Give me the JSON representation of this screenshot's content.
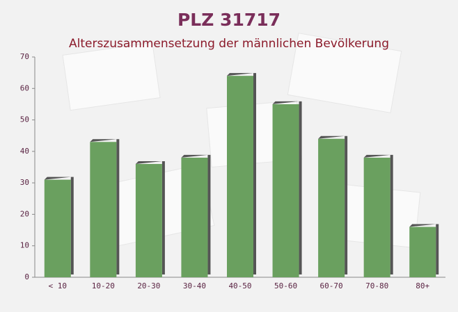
{
  "chart_data": {
    "type": "bar",
    "title": "PLZ 31717",
    "subtitle": "Alterszusammensetzung der männlichen Bevölkerung",
    "categories": [
      "< 10",
      "10-20",
      "20-30",
      "30-40",
      "40-50",
      "50-60",
      "60-70",
      "70-80",
      "80+"
    ],
    "values": [
      31,
      43,
      36,
      38,
      64,
      55,
      44,
      38,
      16
    ],
    "color": "#6aa05f",
    "ylim": [
      0,
      70
    ],
    "yticks": [
      0,
      10,
      20,
      30,
      40,
      50,
      60,
      70
    ],
    "grid": false
  }
}
